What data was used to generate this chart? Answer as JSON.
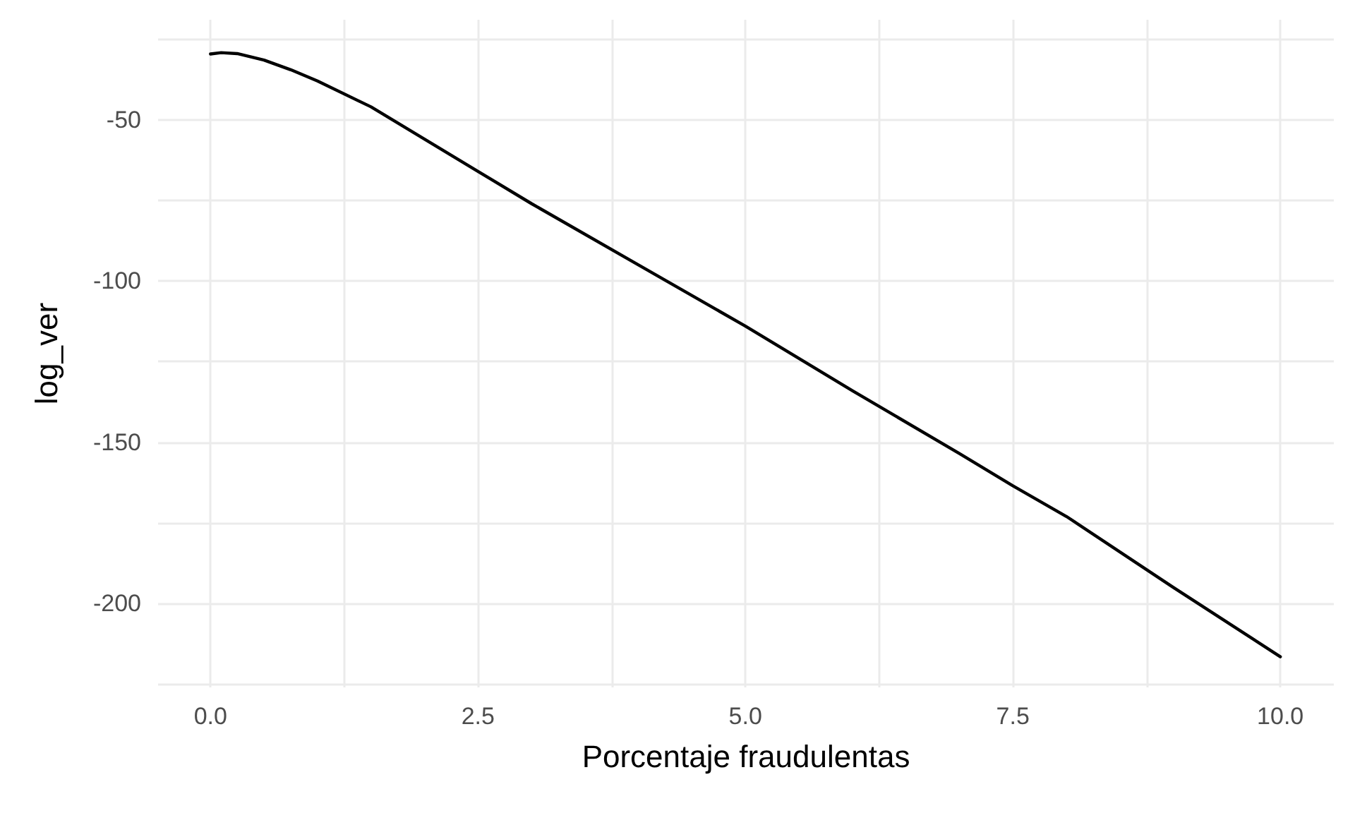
{
  "chart_data": {
    "type": "line",
    "xlabel": "Porcentaje fraudulentas",
    "ylabel": "log_ver",
    "x": [
      0,
      0.1,
      0.25,
      0.5,
      0.75,
      1,
      1.5,
      2,
      2.5,
      3,
      4,
      5,
      6,
      7,
      7.5,
      8,
      9,
      10
    ],
    "series": [
      {
        "color": "#000000",
        "values": [
          -29.6,
          -29.2,
          -29.5,
          -31.5,
          -34.5,
          -38,
          -46,
          -56,
          -66,
          -76,
          -95,
          -114,
          -134,
          -153.5,
          -163.5,
          -173,
          -195,
          -216.5
        ]
      }
    ],
    "xlim": [
      -0.49,
      10.5
    ],
    "xticks": [
      {
        "value": 0,
        "label": "0.0"
      },
      {
        "value": 1.25,
        "label": null
      },
      {
        "value": 2.5,
        "label": "2.5"
      },
      {
        "value": 3.75,
        "label": null
      },
      {
        "value": 5,
        "label": "5.0"
      },
      {
        "value": 6.25,
        "label": null
      },
      {
        "value": 7.5,
        "label": "7.5"
      },
      {
        "value": 8.75,
        "label": null
      },
      {
        "value": 10,
        "label": "10.0"
      }
    ],
    "ylim": [
      -226,
      -19
    ],
    "yticks": [
      {
        "value": -225,
        "label": null
      },
      -200,
      {
        "value": -175,
        "label": null
      },
      -150,
      {
        "value": -125,
        "label": null
      },
      -100,
      {
        "value": -75,
        "label": null
      },
      -50,
      {
        "value": -25,
        "label": null
      }
    ],
    "grid": true,
    "marker": "none",
    "line_style": "solid"
  }
}
